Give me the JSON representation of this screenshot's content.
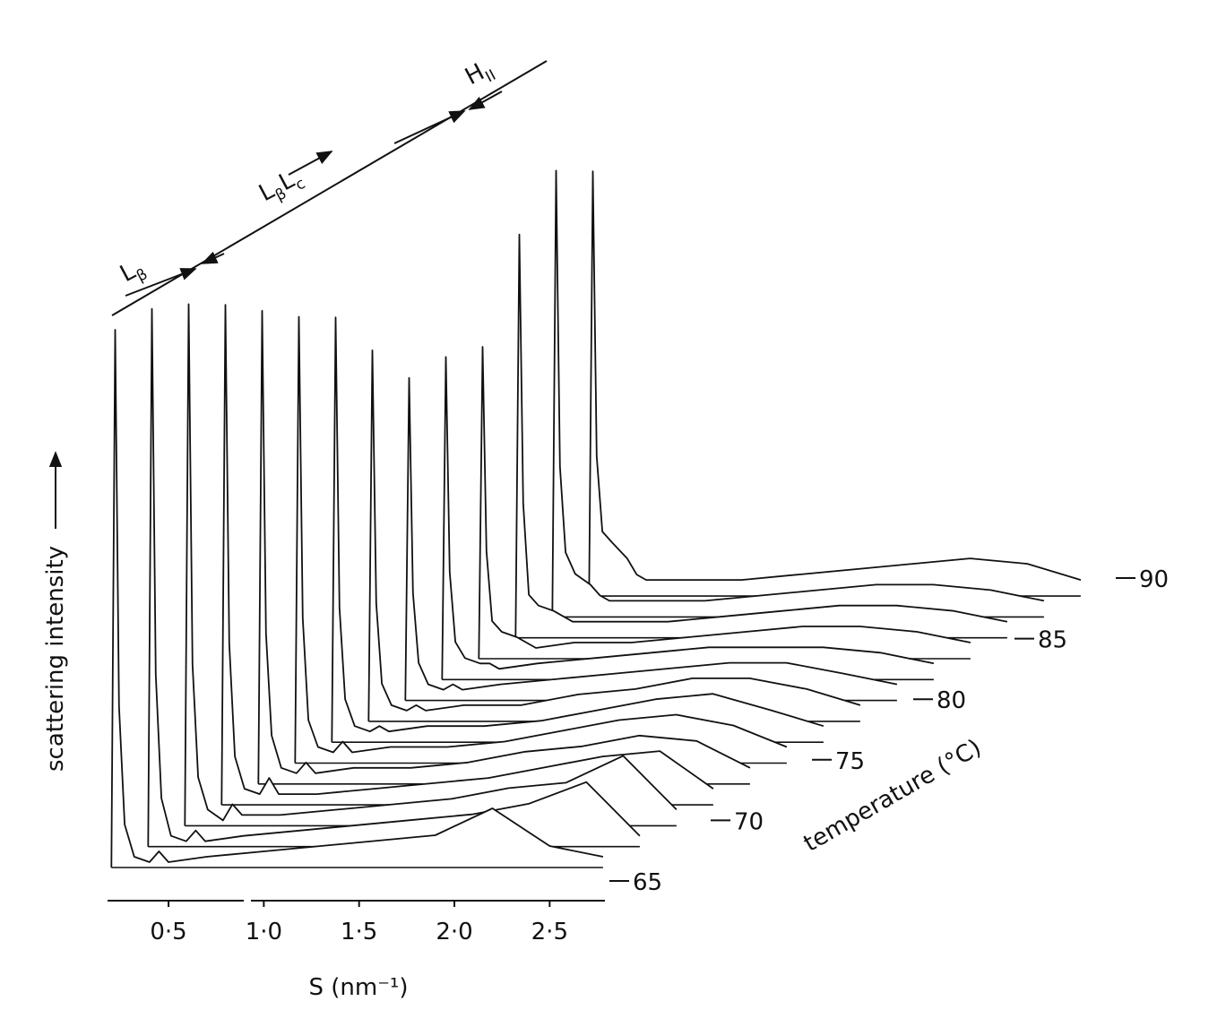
{
  "chart_data": {
    "type": "waterfall",
    "xlabel": "S (nm⁻¹)",
    "ylabel": "scattering intensity",
    "zlabel": "temperature (°C)",
    "phase_labels": [
      {
        "base": "L",
        "sub": "β"
      },
      {
        "base": "L",
        "sub": "β",
        "to_base": "L",
        "to_sub": "c"
      },
      {
        "base": "H",
        "sub": "II"
      }
    ],
    "x": [
      0.2,
      0.22,
      0.24,
      0.27,
      0.32,
      0.4,
      0.45,
      0.5,
      0.7,
      1.0,
      1.3,
      1.6,
      1.9,
      2.2,
      2.5,
      2.78
    ],
    "xlim": [
      0.18,
      2.79
    ],
    "xticks": [
      {
        "value": 0.5,
        "label": "0·5"
      },
      {
        "value": 1.0,
        "label": "1·0"
      },
      {
        "value": 1.5,
        "label": "1·5"
      },
      {
        "value": 2.0,
        "label": "2·0"
      },
      {
        "value": 2.5,
        "label": "2·5"
      }
    ],
    "ylim": [
      0,
      100
    ],
    "zlim": [
      65,
      90
    ],
    "zticks": [
      65,
      70,
      75,
      80,
      85,
      90
    ],
    "color": "#111111",
    "series": [
      {
        "values": [
          0,
          100,
          30,
          8,
          2,
          1,
          3,
          1,
          2,
          3,
          4,
          5,
          6,
          11,
          4,
          2
        ]
      },
      {
        "values": [
          0,
          100,
          32,
          9,
          2,
          1,
          3,
          1,
          2,
          3,
          4,
          5,
          6,
          8,
          12,
          2
        ]
      },
      {
        "values": [
          0,
          97,
          30,
          9,
          3,
          1,
          4,
          2,
          2,
          3,
          4,
          5,
          7,
          8,
          13,
          3
        ]
      },
      {
        "values": [
          0,
          93,
          30,
          9,
          3,
          2,
          5,
          2,
          2,
          3,
          4,
          5,
          7,
          9,
          10,
          3
        ]
      },
      {
        "values": [
          0,
          88,
          28,
          9,
          3,
          2,
          4,
          2,
          3,
          3,
          4,
          6,
          7,
          9,
          8,
          3
        ]
      },
      {
        "values": [
          0,
          83,
          27,
          8,
          3,
          2,
          4,
          2,
          3,
          3,
          4,
          6,
          8,
          9,
          7,
          3
        ]
      },
      {
        "values": [
          0,
          79,
          25,
          8,
          3,
          2,
          3,
          2,
          3,
          3,
          4,
          6,
          8,
          9,
          6,
          3
        ]
      },
      {
        "values": [
          0,
          69,
          22,
          7,
          3,
          2,
          3,
          2,
          3,
          3,
          5,
          6,
          8,
          8,
          6,
          3
        ]
      },
      {
        "values": [
          0,
          60,
          20,
          7,
          3,
          2,
          3,
          2,
          3,
          4,
          5,
          6,
          7,
          7,
          5,
          3
        ]
      },
      {
        "values": [
          0,
          60,
          20,
          7,
          4,
          3,
          3,
          2,
          3,
          4,
          5,
          6,
          6,
          6,
          5,
          3
        ]
      },
      {
        "values": [
          0,
          58,
          20,
          7,
          5,
          4,
          3,
          2,
          3,
          3,
          4,
          5,
          6,
          6,
          5,
          3
        ]
      },
      {
        "values": [
          0,
          75,
          25,
          8,
          6,
          5,
          4,
          3,
          3,
          3,
          4,
          5,
          6,
          6,
          5,
          3
        ]
      },
      {
        "values": [
          0,
          83,
          28,
          12,
          8,
          6,
          4,
          3,
          3,
          3,
          4,
          5,
          6,
          6,
          5,
          3
        ]
      },
      {
        "values": [
          0,
          79,
          26,
          12,
          10,
          7,
          4,
          3,
          3,
          3,
          4,
          5,
          6,
          7,
          6,
          3
        ]
      }
    ]
  }
}
